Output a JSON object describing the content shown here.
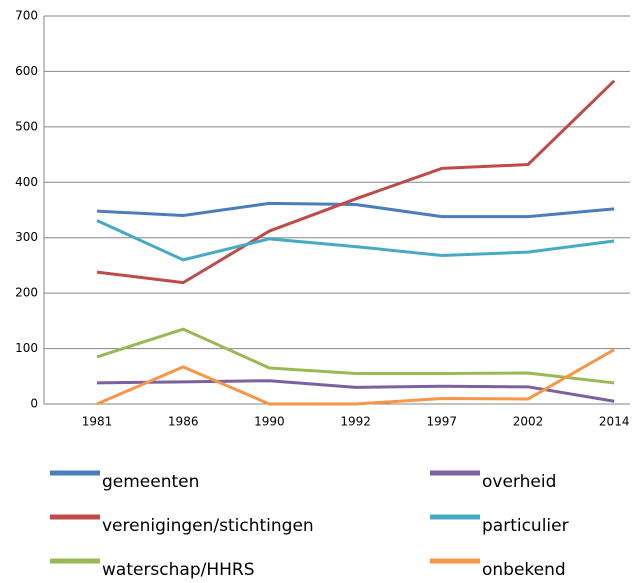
{
  "chart_data": {
    "type": "line",
    "categories": [
      "1981",
      "1986",
      "1990",
      "1992",
      "1997",
      "2002",
      "2014"
    ],
    "series": [
      {
        "name": "gemeenten",
        "color": "#4a7ebb",
        "values": [
          348,
          340,
          362,
          360,
          338,
          338,
          352
        ]
      },
      {
        "name": "verenigingen/stichtingen",
        "color": "#be4b48",
        "values": [
          238,
          219,
          312,
          370,
          425,
          432,
          583
        ]
      },
      {
        "name": "waterschap/HHRS",
        "color": "#98b954",
        "values": [
          85,
          135,
          65,
          55,
          55,
          56,
          38
        ]
      },
      {
        "name": "overheid",
        "color": "#7d60a0",
        "values": [
          38,
          40,
          42,
          30,
          32,
          31,
          5
        ]
      },
      {
        "name": "particulier",
        "color": "#46aac5",
        "values": [
          331,
          260,
          298,
          284,
          268,
          274,
          294
        ]
      },
      {
        "name": "onbekend",
        "color": "#f79646",
        "values": [
          0,
          67,
          0,
          0,
          10,
          9,
          98
        ]
      }
    ],
    "ylim": [
      0,
      700
    ],
    "yticks": [
      0,
      100,
      200,
      300,
      400,
      500,
      600,
      700
    ],
    "grid": true,
    "legend": "bottom"
  }
}
